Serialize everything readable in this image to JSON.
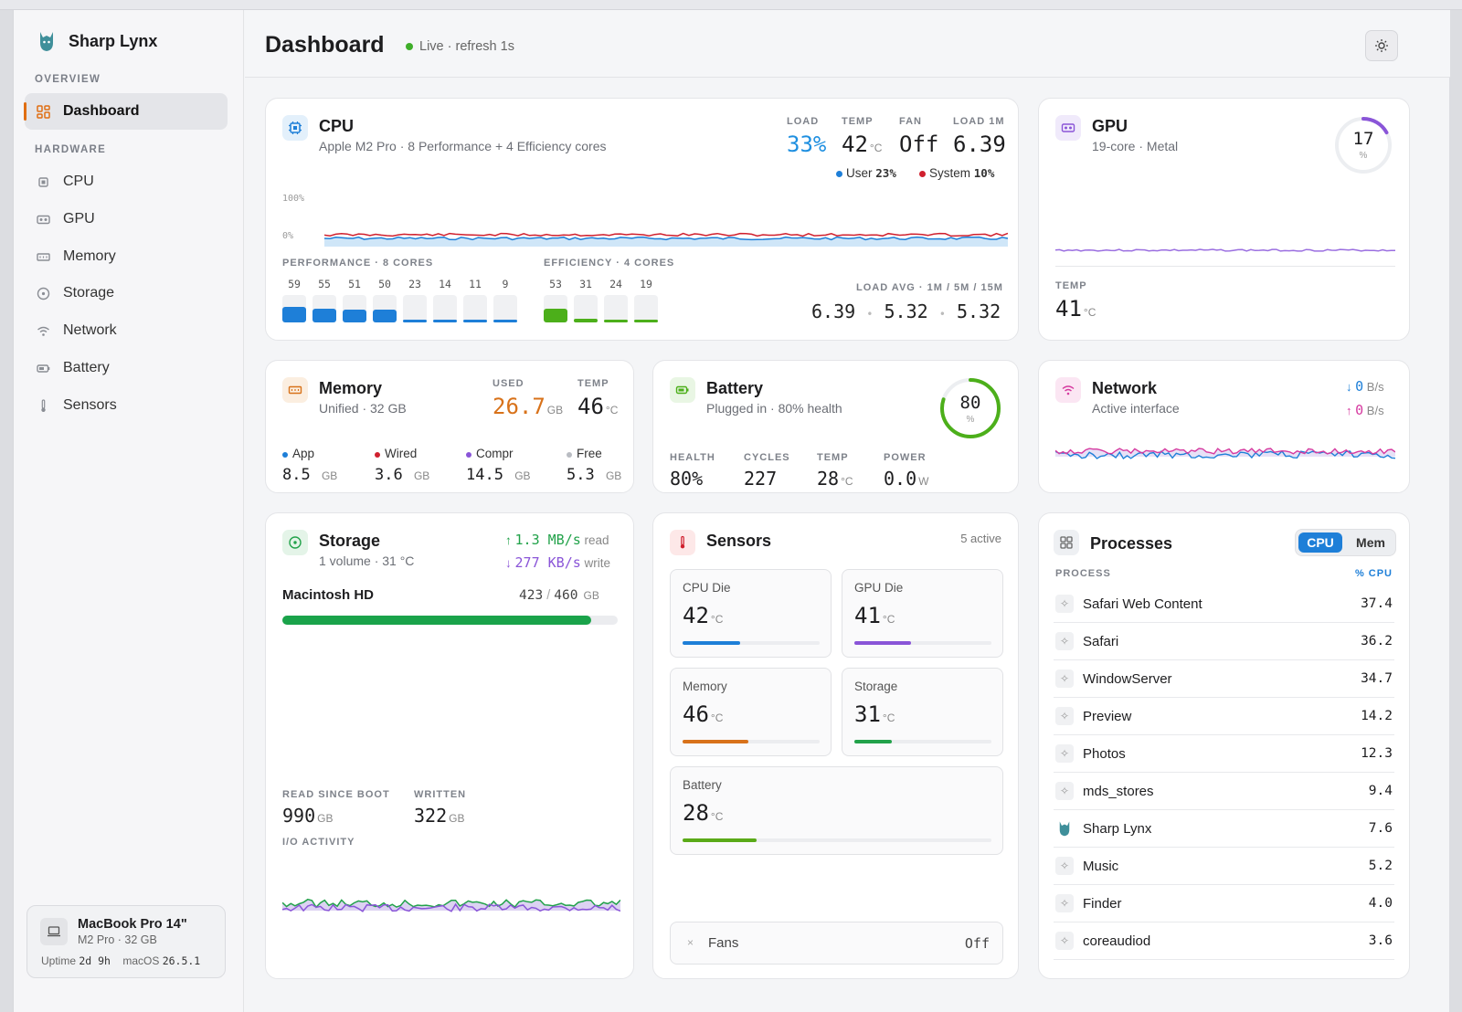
{
  "app": {
    "name": "Sharp Lynx"
  },
  "sidebar": {
    "overview_label": "OVERVIEW",
    "hardware_label": "HARDWARE",
    "items": [
      {
        "label": "Dashboard",
        "icon": "dashboard-icon"
      },
      {
        "label": "CPU",
        "icon": "cpu-icon"
      },
      {
        "label": "GPU",
        "icon": "gpu-icon"
      },
      {
        "label": "Memory",
        "icon": "memory-icon"
      },
      {
        "label": "Storage",
        "icon": "storage-icon"
      },
      {
        "label": "Network",
        "icon": "wifi-icon"
      },
      {
        "label": "Battery",
        "icon": "battery-icon"
      },
      {
        "label": "Sensors",
        "icon": "thermometer-icon"
      }
    ],
    "device": {
      "name": "MacBook Pro 14\"",
      "sub": "M2 Pro · 32 GB",
      "uptime_label": "Uptime",
      "uptime_value": "2d 9h",
      "os_label": "macOS",
      "os_value": "26.5.1"
    }
  },
  "header": {
    "title": "Dashboard",
    "live": "Live · refresh 1s"
  },
  "cpu": {
    "title": "CPU",
    "sub": "Apple M2 Pro · 8 Performance + 4 Efficiency cores",
    "load_label": "LOAD",
    "load": "33%",
    "temp_label": "TEMP",
    "temp": "42",
    "temp_unit": "°C",
    "fan_label": "FAN",
    "fan": "Off",
    "load1m_label": "LOAD 1M",
    "load1m": "6.39",
    "user_label": "User",
    "user": "23%",
    "system_label": "System",
    "system": "10%",
    "axis_top": "100%",
    "axis_bottom": "0%",
    "perf_label": "PERFORMANCE · 8 CORES",
    "perf_cores": [
      59,
      55,
      51,
      50,
      23,
      14,
      11,
      9
    ],
    "eff_label": "EFFICIENCY · 4 CORES",
    "eff_cores": [
      53,
      31,
      24,
      19
    ],
    "loadavg_label": "LOAD AVG · 1M / 5M / 15M",
    "loadavg": [
      "6.39",
      "5.32",
      "5.32"
    ]
  },
  "gpu": {
    "title": "GPU",
    "sub": "19-core · Metal",
    "usage": 17,
    "usage_pct": "%",
    "temp_label": "TEMP",
    "temp": "41",
    "temp_unit": "°C"
  },
  "memory": {
    "title": "Memory",
    "sub": "Unified · 32 GB",
    "used_label": "USED",
    "used": "26.7",
    "used_unit": "GB",
    "temp_label": "TEMP",
    "temp": "46",
    "temp_unit": "°C",
    "breakdown": [
      {
        "label": "App",
        "value": "8.5",
        "unit": "GB"
      },
      {
        "label": "Wired",
        "value": "3.6",
        "unit": "GB"
      },
      {
        "label": "Compr",
        "value": "14.5",
        "unit": "GB"
      },
      {
        "label": "Free",
        "value": "5.3",
        "unit": "GB"
      }
    ]
  },
  "battery": {
    "title": "Battery",
    "sub": "Plugged in · 80% health",
    "charge": 80,
    "charge_pct": "%",
    "health_label": "HEALTH",
    "health": "80%",
    "cycles_label": "CYCLES",
    "cycles": "227",
    "temp_label": "TEMP",
    "temp": "28",
    "temp_unit": "°C",
    "power_label": "POWER",
    "power": "0.0",
    "power_unit": "W"
  },
  "network": {
    "title": "Network",
    "sub": "Active interface",
    "down": "0",
    "down_unit": "B/s",
    "up": "0",
    "up_unit": "B/s"
  },
  "storage": {
    "title": "Storage",
    "sub": "1 volume · 31 °C",
    "read": "1.3 MB/s",
    "read_label": "read",
    "write": "277 KB/s",
    "write_label": "write",
    "volume": "Macintosh HD",
    "used": "423",
    "total": "460",
    "unit": "GB",
    "slash": "/",
    "fraction": 0.92,
    "read_boot_label": "READ SINCE BOOT",
    "read_boot": "990",
    "read_boot_unit": "GB",
    "written_label": "WRITTEN",
    "written": "322",
    "written_unit": "GB",
    "io_label": "I/O ACTIVITY"
  },
  "sensors": {
    "title": "Sensors",
    "active": "5 active",
    "tiles": [
      {
        "name": "CPU Die",
        "value": "42",
        "unit": "°C",
        "level": 0.42,
        "color": "#1e7fd8"
      },
      {
        "name": "GPU Die",
        "value": "41",
        "unit": "°C",
        "level": 0.41,
        "color": "#8a55d8"
      },
      {
        "name": "Memory",
        "value": "46",
        "unit": "°C",
        "level": 0.48,
        "color": "#d8721a"
      },
      {
        "name": "Storage",
        "value": "31",
        "unit": "°C",
        "level": 0.27,
        "color": "#22a24a"
      },
      {
        "name": "Battery",
        "value": "28",
        "unit": "°C",
        "level": 0.24,
        "color": "#5aaa18"
      }
    ],
    "fans_label": "Fans",
    "fans_value": "Off"
  },
  "processes": {
    "title": "Processes",
    "tab_cpu": "CPU",
    "tab_mem": "Mem",
    "col_process": "PROCESS",
    "col_cpu": "% CPU",
    "rows": [
      {
        "name": "Safari Web Content",
        "value": "37.4"
      },
      {
        "name": "Safari",
        "value": "36.2"
      },
      {
        "name": "WindowServer",
        "value": "34.7"
      },
      {
        "name": "Preview",
        "value": "14.2"
      },
      {
        "name": "Photos",
        "value": "12.3"
      },
      {
        "name": "mds_stores",
        "value": "9.4"
      },
      {
        "name": "Sharp Lynx",
        "value": "7.6"
      },
      {
        "name": "Music",
        "value": "5.2"
      },
      {
        "name": "Finder",
        "value": "4.0"
      },
      {
        "name": "coreaudiod",
        "value": "3.6"
      }
    ]
  },
  "colors": {
    "accent": "#e06e12",
    "blue": "#1e7fd8",
    "green": "#4caf1a",
    "red": "#d0202e",
    "purple": "#8a55d8",
    "pink": "#d63aa0",
    "orange": "#d8721a"
  }
}
